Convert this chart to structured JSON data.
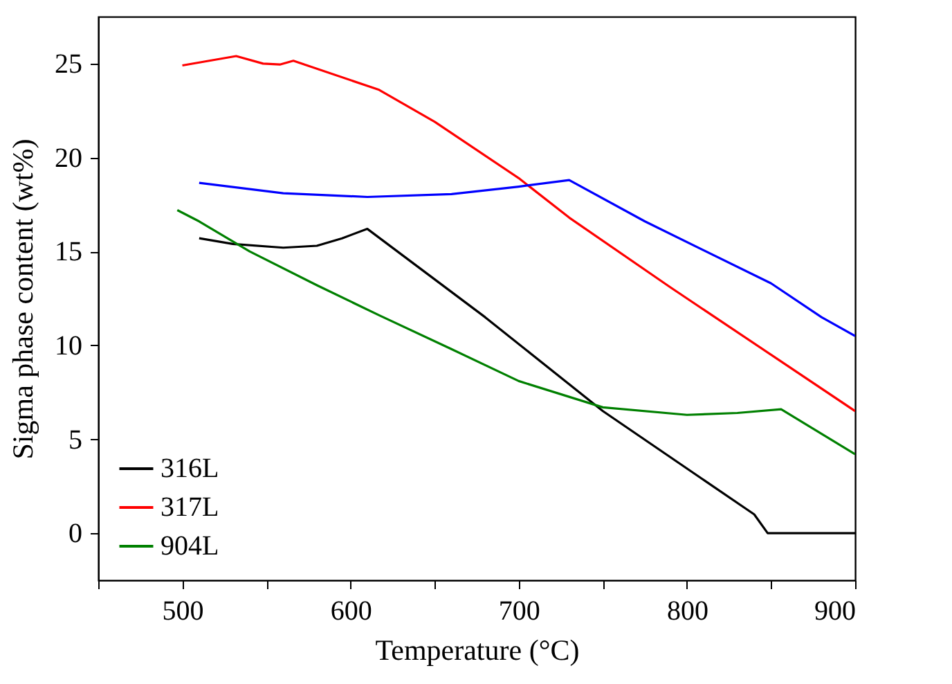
{
  "chart_data": {
    "type": "line",
    "xlabel": "Temperature (°C)",
    "ylabel": "Sigma phase content (wt%)",
    "xlim": [
      450,
      900
    ],
    "xticks": [
      {
        "value": 450,
        "label": null
      },
      500,
      {
        "value": 550,
        "label": null
      },
      600,
      {
        "value": 650,
        "label": null
      },
      700,
      {
        "value": 750,
        "label": null
      },
      800,
      {
        "value": 850,
        "label": null
      },
      900
    ],
    "ylim": [
      -2.5,
      27.5
    ],
    "yticks": [
      0,
      5,
      10,
      15,
      20,
      25
    ],
    "grid": false,
    "legend": "bottom left",
    "line_style": "solid",
    "series": [
      {
        "name": "316L",
        "color": "#000000",
        "x": [
          510,
          530,
          560,
          580,
          595,
          610,
          680,
          750,
          840,
          848,
          900
        ],
        "values": [
          15.7,
          15.4,
          15.2,
          15.3,
          15.7,
          16.2,
          11.5,
          6.5,
          1.0,
          0,
          0
        ]
      },
      {
        "name": "317L",
        "color": "#ff0000",
        "x": [
          500,
          532,
          548,
          558,
          566,
          617,
          650,
          700,
          730,
          790,
          850,
          900
        ],
        "values": [
          24.9,
          25.4,
          25.0,
          24.95,
          25.15,
          23.6,
          21.9,
          18.9,
          16.8,
          13.1,
          9.5,
          6.5
        ]
      },
      {
        "name": "904L",
        "color": "#008000",
        "x": [
          497,
          510,
          540,
          580,
          617,
          660,
          700,
          750,
          800,
          830,
          856,
          900
        ],
        "values": [
          17.2,
          16.6,
          15.0,
          13.2,
          11.6,
          9.8,
          8.1,
          6.7,
          6.3,
          6.4,
          6.6,
          4.2
        ]
      },
      {
        "color": "#0000ff",
        "x": [
          510,
          560,
          610,
          660,
          700,
          730,
          775,
          850,
          880,
          900
        ],
        "values": [
          18.65,
          18.1,
          17.9,
          18.05,
          18.45,
          18.8,
          16.6,
          13.3,
          11.5,
          10.5
        ]
      }
    ]
  }
}
